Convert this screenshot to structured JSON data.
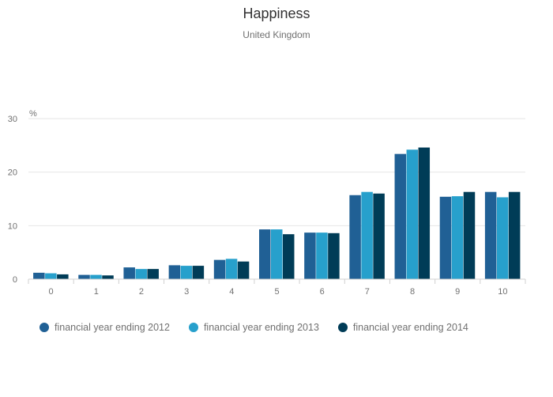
{
  "chart_data": {
    "type": "bar",
    "title": "Happiness",
    "subtitle": "United Kingdom",
    "ylabel": "%",
    "xlabel": "",
    "ylim": [
      0,
      30
    ],
    "yticks": [
      0,
      10,
      20,
      30
    ],
    "grid": true,
    "legend_position": "bottom-left",
    "categories": [
      "0",
      "1",
      "2",
      "3",
      "4",
      "5",
      "6",
      "7",
      "8",
      "9",
      "10"
    ],
    "series": [
      {
        "name": "financial year ending 2012",
        "color": "#206095",
        "values": [
          1.2,
          0.8,
          2.2,
          2.6,
          3.6,
          9.3,
          8.7,
          15.7,
          23.4,
          15.4,
          16.3
        ]
      },
      {
        "name": "financial year ending 2013",
        "color": "#27a0cc",
        "values": [
          1.1,
          0.8,
          1.9,
          2.5,
          3.8,
          9.3,
          8.7,
          16.3,
          24.2,
          15.5,
          15.3
        ]
      },
      {
        "name": "financial year ending 2014",
        "color": "#003c57",
        "values": [
          0.9,
          0.7,
          1.9,
          2.5,
          3.3,
          8.4,
          8.6,
          16.0,
          24.6,
          16.3,
          16.3
        ]
      }
    ]
  }
}
